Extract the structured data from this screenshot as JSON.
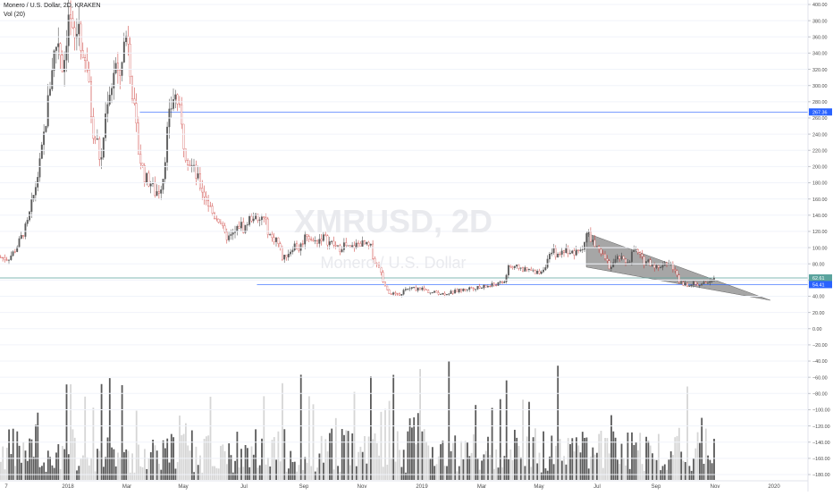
{
  "header": {
    "title": "Monero / U.S. Dollar, 2D, KRAKEN",
    "volume": "Vol (20)"
  },
  "watermark": {
    "symbol": "XMRUSD, 2D",
    "name": "Monero / U.S. Dollar"
  },
  "chart_data": {
    "type": "candlestick",
    "y_axis": {
      "ticks": [
        400,
        380,
        360,
        340,
        320,
        300,
        280,
        260,
        240,
        220,
        200,
        180,
        160,
        140,
        120,
        100,
        80,
        60,
        40,
        20,
        0,
        -20,
        -40,
        -60,
        -80,
        -100,
        -120,
        -140,
        -160,
        -180
      ],
      "tick_labels": [
        "400.00",
        "380.00",
        "360.00",
        "340.00",
        "320.00",
        "300.00",
        "280.00",
        "260.00",
        "240.00",
        "220.00",
        "200.00",
        "180.00",
        "160.00",
        "140.00",
        "120.00",
        "100.00",
        "80.00",
        "60.00",
        "40.00",
        "20.00",
        "0.00",
        "−20.00",
        "−40.00",
        "−60.00",
        "−80.00",
        "−100.00",
        "−120.00",
        "−140.00",
        "−160.00",
        "−180.00"
      ],
      "range": [
        -190,
        405
      ]
    },
    "x_axis": {
      "labels": [
        "7",
        "2018",
        "Mar",
        "May",
        "Jul",
        "Sep",
        "Nov",
        "2019",
        "Mar",
        "May",
        "Jul",
        "Sep",
        "Nov",
        "2020"
      ]
    },
    "price_path": [
      [
        0,
        88
      ],
      [
        8,
        86
      ],
      [
        15,
        95
      ],
      [
        22,
        110
      ],
      [
        30,
        130
      ],
      [
        38,
        170
      ],
      [
        45,
        210
      ],
      [
        52,
        270
      ],
      [
        58,
        330
      ],
      [
        64,
        360
      ],
      [
        70,
        320
      ],
      [
        76,
        390
      ],
      [
        82,
        350
      ],
      [
        88,
        380
      ],
      [
        92,
        320
      ],
      [
        96,
        330
      ],
      [
        100,
        280
      ],
      [
        104,
        240
      ],
      [
        108,
        230
      ],
      [
        112,
        200
      ],
      [
        116,
        250
      ],
      [
        120,
        290
      ],
      [
        124,
        300
      ],
      [
        128,
        330
      ],
      [
        132,
        300
      ],
      [
        136,
        340
      ],
      [
        142,
        370
      ],
      [
        146,
        310
      ],
      [
        150,
        260
      ],
      [
        154,
        220
      ],
      [
        158,
        200
      ],
      [
        162,
        185
      ],
      [
        168,
        180
      ],
      [
        172,
        168
      ],
      [
        178,
        172
      ],
      [
        182,
        190
      ],
      [
        186,
        240
      ],
      [
        190,
        270
      ],
      [
        194,
        290
      ],
      [
        198,
        280
      ],
      [
        202,
        250
      ],
      [
        206,
        220
      ],
      [
        210,
        210
      ],
      [
        214,
        200
      ],
      [
        218,
        190
      ],
      [
        222,
        180
      ],
      [
        226,
        170
      ],
      [
        230,
        160
      ],
      [
        234,
        150
      ],
      [
        238,
        140
      ],
      [
        242,
        138
      ],
      [
        246,
        132
      ],
      [
        250,
        115
      ],
      [
        256,
        112
      ],
      [
        262,
        118
      ],
      [
        268,
        130
      ],
      [
        272,
        122
      ],
      [
        278,
        135
      ],
      [
        284,
        140
      ],
      [
        288,
        128
      ],
      [
        292,
        138
      ],
      [
        296,
        132
      ],
      [
        300,
        118
      ],
      [
        304,
        110
      ],
      [
        308,
        112
      ],
      [
        312,
        100
      ],
      [
        316,
        85
      ],
      [
        320,
        92
      ],
      [
        324,
        96
      ],
      [
        328,
        104
      ],
      [
        334,
        98
      ],
      [
        338,
        108
      ],
      [
        342,
        118
      ],
      [
        346,
        112
      ],
      [
        350,
        106
      ],
      [
        356,
        110
      ],
      [
        360,
        114
      ],
      [
        366,
        108
      ],
      [
        372,
        104
      ],
      [
        378,
        98
      ],
      [
        384,
        104
      ],
      [
        390,
        98
      ],
      [
        396,
        102
      ],
      [
        402,
        106
      ],
      [
        408,
        103
      ],
      [
        414,
        100
      ],
      [
        418,
        84
      ],
      [
        424,
        72
      ],
      [
        428,
        58
      ],
      [
        432,
        48
      ],
      [
        436,
        44
      ],
      [
        442,
        42
      ],
      [
        446,
        40
      ],
      [
        450,
        46
      ],
      [
        454,
        48
      ],
      [
        458,
        50
      ],
      [
        464,
        49
      ],
      [
        470,
        50
      ],
      [
        476,
        47
      ],
      [
        482,
        44
      ],
      [
        488,
        45
      ],
      [
        494,
        43
      ],
      [
        500,
        44
      ],
      [
        506,
        45
      ],
      [
        512,
        47
      ],
      [
        518,
        48
      ],
      [
        524,
        50
      ],
      [
        530,
        51
      ],
      [
        536,
        50
      ],
      [
        542,
        52
      ],
      [
        548,
        53
      ],
      [
        554,
        55
      ],
      [
        560,
        56
      ],
      [
        564,
        58
      ],
      [
        568,
        78
      ],
      [
        574,
        74
      ],
      [
        580,
        76
      ],
      [
        586,
        72
      ],
      [
        592,
        72
      ],
      [
        598,
        68
      ],
      [
        602,
        70
      ],
      [
        606,
        72
      ],
      [
        610,
        80
      ],
      [
        614,
        88
      ],
      [
        618,
        96
      ],
      [
        624,
        88
      ],
      [
        628,
        96
      ],
      [
        634,
        98
      ],
      [
        638,
        94
      ],
      [
        642,
        92
      ],
      [
        648,
        96
      ],
      [
        652,
        104
      ],
      [
        656,
        118
      ],
      [
        660,
        112
      ],
      [
        664,
        104
      ],
      [
        668,
        96
      ],
      [
        672,
        90
      ],
      [
        676,
        88
      ],
      [
        680,
        76
      ],
      [
        686,
        82
      ],
      [
        692,
        88
      ],
      [
        698,
        82
      ],
      [
        704,
        86
      ],
      [
        708,
        98
      ],
      [
        712,
        94
      ],
      [
        716,
        88
      ],
      [
        720,
        82
      ],
      [
        724,
        84
      ],
      [
        728,
        80
      ],
      [
        732,
        78
      ],
      [
        736,
        74
      ],
      [
        740,
        80
      ],
      [
        744,
        82
      ],
      [
        748,
        80
      ],
      [
        752,
        76
      ],
      [
        756,
        66
      ],
      [
        760,
        58
      ],
      [
        764,
        56
      ],
      [
        768,
        54
      ],
      [
        772,
        56
      ],
      [
        778,
        55
      ],
      [
        784,
        54
      ],
      [
        790,
        56
      ],
      [
        794,
        62
      ],
      [
        800,
        61
      ]
    ],
    "price_markers": [
      {
        "value": 267.36,
        "label": "267.36",
        "color": "#2962ff"
      },
      {
        "value": 62.61,
        "label": "62.61",
        "color": "#5aa39d"
      },
      {
        "value": 54.41,
        "label": "54.41",
        "color": "#2962ff"
      }
    ],
    "horizontal_lines": [
      {
        "value": 267.36,
        "x_start_frac": 0.173
      },
      {
        "value": 62.61,
        "x_start_frac": 0.0
      },
      {
        "value": 54.41,
        "x_start_frac": 0.318
      }
    ],
    "wedge": {
      "upper_start": [
        656,
        118
      ],
      "upper_end": [
        862,
        35
      ],
      "lower_start": [
        656,
        76
      ],
      "lower_end": [
        862,
        35
      ]
    },
    "volume_scale_max": 90,
    "colors": {
      "up": "#5b5b5b",
      "down": "#b2b2b2",
      "vol_up": "#5a5a5a",
      "vol_down": "#d6d6d6",
      "down_wick": "#c9302c",
      "grid": "#f0f3fa",
      "axis_text": "#4a4a4a",
      "wedge": "#888888"
    }
  }
}
